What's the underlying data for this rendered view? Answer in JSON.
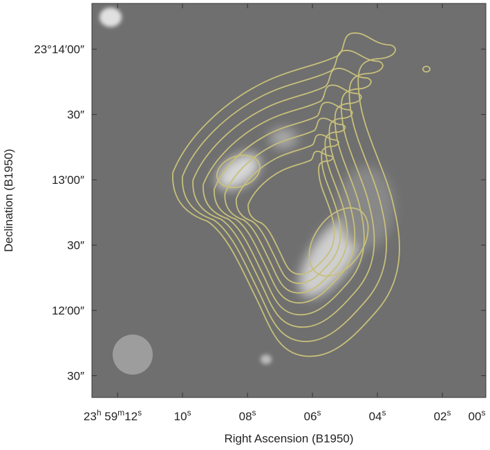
{
  "chart_data": {
    "type": "image-contour",
    "x_label": "Right Ascension (B1950)",
    "y_label": "Declination (B1950)",
    "xlim": [
      12.79,
      0.66
    ],
    "ylim": [
      861,
      680
    ],
    "xticks": [
      {
        "value": 12,
        "label": "23h 59m12s"
      },
      {
        "value": 10,
        "label": "10s"
      },
      {
        "value": 8,
        "label": "08s"
      },
      {
        "value": 6,
        "label": "06s"
      },
      {
        "value": 4,
        "label": "04s"
      },
      {
        "value": 2,
        "label": "02s"
      },
      {
        "value": 0,
        "label": "00s"
      }
    ],
    "yticks": [
      {
        "value": 840,
        "label": "23°14′00″"
      },
      {
        "value": 810,
        "label": "30″"
      },
      {
        "value": 780,
        "label": "13′00″"
      },
      {
        "value": 750,
        "label": "30″"
      },
      {
        "value": 720,
        "label": "12′00″"
      },
      {
        "value": 690,
        "label": "30″"
      }
    ],
    "contour_color": "#c8c07a"
  }
}
